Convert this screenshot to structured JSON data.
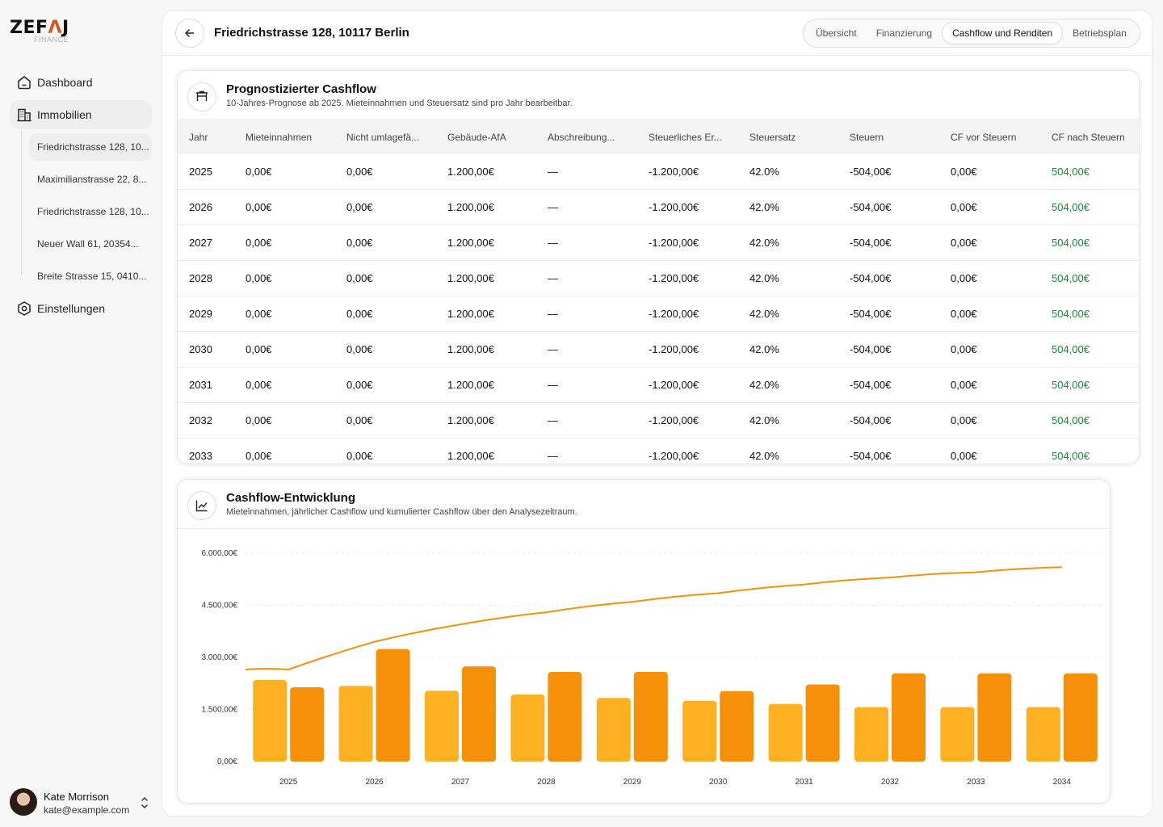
{
  "sidebar": {
    "logo": {
      "word_a": "ZEF",
      "word_b": "Λ",
      "word_c": "J",
      "sub": "FINANCE"
    },
    "items": [
      {
        "label": "Dashboard",
        "icon": "home-icon"
      },
      {
        "label": "Immobilien",
        "icon": "building-icon"
      },
      {
        "label": "Einstellungen",
        "icon": "settings-icon"
      }
    ],
    "properties": [
      "Friedrichstrasse 128, 10...",
      "Maximilianstrasse 22, 8...",
      "Friedrichstrasse 128, 10...",
      "Neuer Wall 61, 20354...",
      "Breite Strasse 15, 0410..."
    ],
    "user": {
      "name": "Kate Morrison",
      "email": "kate@example.com"
    }
  },
  "header": {
    "title": "Friedrichstrasse 128, 10117 Berlin",
    "tabs": [
      "Übersicht",
      "Finanzierung",
      "Cashflow und Renditen",
      "Betriebsplan"
    ],
    "active_tab": 2
  },
  "cashflow_card": {
    "title": "Prognostizierter Cashflow",
    "subtitle": "10-Jahres-Prognose ab 2025. Mieteinnahmen und Steuersatz sind pro Jahr bearbeitbar.",
    "columns": [
      "Jahr",
      "Mieteinnahmen",
      "Nicht umlagefä...",
      "Gebäude-AfA",
      "Abschreibung...",
      "Steuerliches Er...",
      "Steuersatz",
      "Steuern",
      "CF vor Steuern",
      "CF nach Steuern"
    ],
    "rows": [
      [
        "2025",
        "0,00€",
        "0,00€",
        "1.200,00€",
        "—",
        "-1.200,00€",
        "42.0%",
        "-504,00€",
        "0,00€",
        "504,00€"
      ],
      [
        "2026",
        "0,00€",
        "0,00€",
        "1.200,00€",
        "—",
        "-1.200,00€",
        "42.0%",
        "-504,00€",
        "0,00€",
        "504,00€"
      ],
      [
        "2027",
        "0,00€",
        "0,00€",
        "1.200,00€",
        "—",
        "-1.200,00€",
        "42.0%",
        "-504,00€",
        "0,00€",
        "504,00€"
      ],
      [
        "2028",
        "0,00€",
        "0,00€",
        "1.200,00€",
        "—",
        "-1.200,00€",
        "42.0%",
        "-504,00€",
        "0,00€",
        "504,00€"
      ],
      [
        "2029",
        "0,00€",
        "0,00€",
        "1.200,00€",
        "—",
        "-1.200,00€",
        "42.0%",
        "-504,00€",
        "0,00€",
        "504,00€"
      ],
      [
        "2030",
        "0,00€",
        "0,00€",
        "1.200,00€",
        "—",
        "-1.200,00€",
        "42.0%",
        "-504,00€",
        "0,00€",
        "504,00€"
      ],
      [
        "2031",
        "0,00€",
        "0,00€",
        "1.200,00€",
        "—",
        "-1.200,00€",
        "42.0%",
        "-504,00€",
        "0,00€",
        "504,00€"
      ],
      [
        "2032",
        "0,00€",
        "0,00€",
        "1.200,00€",
        "—",
        "-1.200,00€",
        "42.0%",
        "-504,00€",
        "0,00€",
        "504,00€"
      ],
      [
        "2033",
        "0,00€",
        "0,00€",
        "1.200,00€",
        "—",
        "-1.200,00€",
        "42.0%",
        "-504,00€",
        "0,00€",
        "504,00€"
      ]
    ],
    "positive_color": "#1a8a3a"
  },
  "chart_card": {
    "title": "Cashflow-Entwicklung",
    "subtitle": "Mieteinnahmen, jährlicher Cashflow und kumulierter Cashflow über den Analysezeitraum."
  },
  "chart_data": {
    "type": "bar",
    "categories": [
      "2025",
      "2026",
      "2027",
      "2028",
      "2029",
      "2030",
      "2031",
      "2032",
      "2033",
      "2034"
    ],
    "ylim": [
      0,
      6000
    ],
    "yticks": [
      0,
      1500,
      3000,
      4500,
      6000
    ],
    "ytick_labels": [
      "0,00€",
      "1.500,00€",
      "3.000,00€",
      "4.500,00€",
      "6.000,00€"
    ],
    "grid": true,
    "series": [
      {
        "type": "bar",
        "color": "#fdb022",
        "values": [
          2350,
          2180,
          2040,
          1930,
          1830,
          1750,
          1660,
          1570,
          1570,
          1570
        ]
      },
      {
        "type": "bar",
        "color": "#f79009",
        "values": [
          2140,
          3240,
          2740,
          2580,
          2580,
          2030,
          2220,
          2540,
          2540,
          2540
        ]
      },
      {
        "type": "line",
        "color": "#f79009",
        "values": [
          2650,
          3450,
          3950,
          4300,
          4600,
          4850,
          5100,
          5300,
          5450,
          5600
        ]
      }
    ]
  }
}
